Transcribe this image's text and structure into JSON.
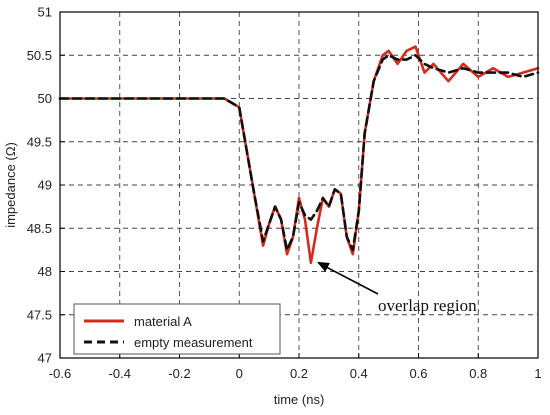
{
  "chart_data": {
    "type": "line",
    "title": "",
    "xlabel": "time (ns)",
    "ylabel": "impedance (Ω)",
    "xlim": [
      -0.6,
      1.0
    ],
    "ylim": [
      47,
      51
    ],
    "x_ticks": [
      -0.6,
      -0.4,
      -0.2,
      0,
      0.2,
      0.4,
      0.6,
      0.8,
      1
    ],
    "x_tick_labels": [
      "-0.6",
      "-0.4",
      "-0.2",
      "0",
      "0.2",
      "0.4",
      "0.6",
      "0.8",
      "1"
    ],
    "y_ticks": [
      47,
      47.5,
      48,
      48.5,
      49,
      49.5,
      50,
      50.5,
      51
    ],
    "y_tick_labels": [
      "47",
      "47.5",
      "48",
      "48.5",
      "49",
      "49.5",
      "50",
      "50.5",
      "51"
    ],
    "grid": true,
    "legend_position": "bottom-left",
    "series": [
      {
        "name": "material A",
        "color": "#d62a1e",
        "style": "solid",
        "x": [
          -0.6,
          -0.4,
          -0.2,
          -0.05,
          0,
          0.02,
          0.05,
          0.08,
          0.1,
          0.12,
          0.14,
          0.16,
          0.18,
          0.2,
          0.22,
          0.24,
          0.26,
          0.28,
          0.3,
          0.32,
          0.34,
          0.36,
          0.38,
          0.4,
          0.42,
          0.45,
          0.48,
          0.5,
          0.53,
          0.56,
          0.59,
          0.62,
          0.65,
          0.7,
          0.75,
          0.8,
          0.85,
          0.9,
          0.95,
          1.0
        ],
        "y": [
          50.0,
          50.0,
          50.0,
          50.0,
          49.9,
          49.5,
          48.9,
          48.3,
          48.55,
          48.75,
          48.6,
          48.2,
          48.4,
          48.85,
          48.6,
          48.1,
          48.5,
          48.85,
          48.75,
          48.95,
          48.9,
          48.4,
          48.2,
          48.7,
          49.6,
          50.2,
          50.5,
          50.55,
          50.4,
          50.55,
          50.6,
          50.3,
          50.4,
          50.2,
          50.4,
          50.25,
          50.35,
          50.25,
          50.3,
          50.35
        ]
      },
      {
        "name": "empty measurement",
        "color": "#111111",
        "style": "dashed",
        "x": [
          -0.6,
          -0.4,
          -0.2,
          -0.05,
          0,
          0.02,
          0.05,
          0.08,
          0.1,
          0.12,
          0.14,
          0.16,
          0.18,
          0.2,
          0.22,
          0.24,
          0.26,
          0.28,
          0.3,
          0.32,
          0.34,
          0.36,
          0.38,
          0.4,
          0.42,
          0.45,
          0.48,
          0.5,
          0.53,
          0.56,
          0.59,
          0.62,
          0.65,
          0.7,
          0.75,
          0.8,
          0.85,
          0.9,
          0.95,
          1.0
        ],
        "y": [
          50.0,
          50.0,
          50.0,
          50.0,
          49.9,
          49.5,
          48.9,
          48.35,
          48.55,
          48.75,
          48.6,
          48.25,
          48.4,
          48.8,
          48.65,
          48.6,
          48.7,
          48.85,
          48.75,
          48.95,
          48.9,
          48.4,
          48.25,
          48.7,
          49.6,
          50.2,
          50.45,
          50.5,
          50.45,
          50.45,
          50.5,
          50.4,
          50.35,
          50.3,
          50.35,
          50.3,
          50.3,
          50.3,
          50.25,
          50.3
        ]
      }
    ],
    "annotations": [
      {
        "text": "overlap region",
        "point_x": 0.25,
        "point_y": 48.1
      }
    ]
  }
}
